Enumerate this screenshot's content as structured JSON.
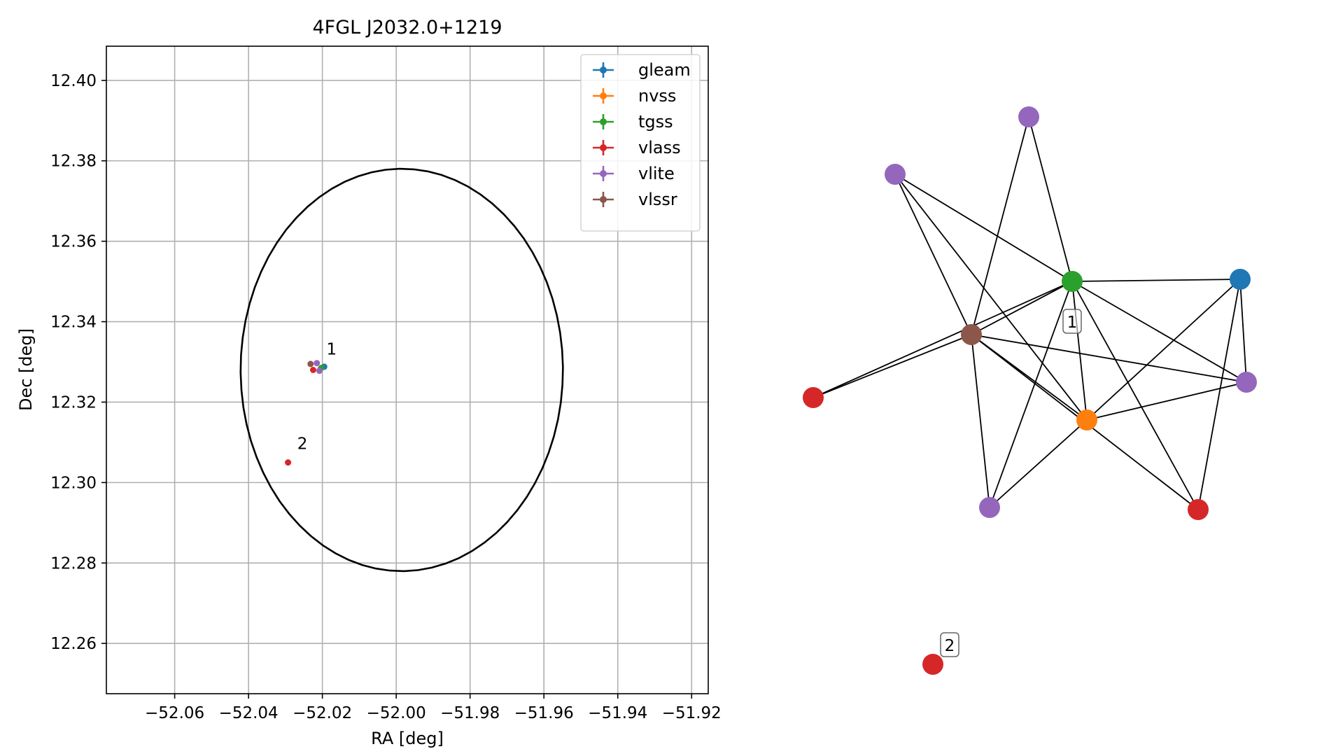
{
  "chart_data": [
    {
      "type": "scatter",
      "title": "4FGL J2032.0+1219",
      "xlabel": "RA [deg]",
      "ylabel": "Dec [deg]",
      "xlim": [
        -52.0785,
        -51.9155
      ],
      "ylim": [
        12.2475,
        12.4085
      ],
      "xticks": [
        -52.06,
        -52.04,
        -52.02,
        -52.0,
        -51.98,
        -51.96,
        -51.94,
        -51.92
      ],
      "xtick_labels": [
        "−52.06",
        "−52.04",
        "−52.02",
        "−52.00",
        "−51.98",
        "−51.96",
        "−51.94",
        "−51.92"
      ],
      "yticks": [
        12.26,
        12.28,
        12.3,
        12.32,
        12.34,
        12.36,
        12.38,
        12.4
      ],
      "ytick_labels": [
        "12.26",
        "12.28",
        "12.30",
        "12.32",
        "12.34",
        "12.36",
        "12.38",
        "12.40"
      ],
      "grid": true,
      "legend_position": "top-right",
      "ellipse": {
        "center": [
          -51.9985,
          12.328
        ],
        "ra_halfwidth": 0.0445,
        "dec_halfheight": 0.051,
        "tilt_deg": -12,
        "color": "#000000"
      },
      "series": [
        {
          "name": "gleam",
          "color": "#1f77b4",
          "points": [
            {
              "x": -52.0195,
              "y": 12.3288
            }
          ]
        },
        {
          "name": "nvss",
          "color": "#ff7f0e",
          "points": [
            {
              "x": -52.0205,
              "y": 12.3283
            }
          ]
        },
        {
          "name": "tgss",
          "color": "#2ca02c",
          "points": [
            {
              "x": -52.0203,
              "y": 12.3285
            }
          ]
        },
        {
          "name": "vlass",
          "color": "#d62728",
          "points": [
            {
              "x": -52.0225,
              "y": 12.328
            },
            {
              "x": -52.0293,
              "y": 12.305
            }
          ]
        },
        {
          "name": "vlite",
          "color": "#9467bd",
          "points": [
            {
              "x": -52.0215,
              "y": 12.3297
            },
            {
              "x": -52.0208,
              "y": 12.3278
            }
          ]
        },
        {
          "name": "vlssr",
          "color": "#8c564b",
          "points": [
            {
              "x": -52.0232,
              "y": 12.3295
            }
          ]
        }
      ],
      "annotations": [
        {
          "text": "1",
          "x": -52.0189,
          "y": 12.3318
        },
        {
          "text": "2",
          "x": -52.0268,
          "y": 12.3083
        }
      ]
    },
    {
      "type": "network",
      "nodes": [
        {
          "id": "purple_top",
          "color": "#9467bd"
        },
        {
          "id": "purple_left",
          "color": "#9467bd"
        },
        {
          "id": "green",
          "color": "#2ca02c"
        },
        {
          "id": "blue",
          "color": "#1f77b4"
        },
        {
          "id": "brown",
          "color": "#8c564b"
        },
        {
          "id": "red_left",
          "color": "#d62728"
        },
        {
          "id": "purple_right",
          "color": "#9467bd"
        },
        {
          "id": "orange",
          "color": "#ff7f0e"
        },
        {
          "id": "purple_bottom",
          "color": "#9467bd"
        },
        {
          "id": "red_right",
          "color": "#d62728"
        },
        {
          "id": "red_isolated",
          "color": "#d62728"
        }
      ],
      "edges": [
        [
          "purple_top",
          "green"
        ],
        [
          "purple_top",
          "brown"
        ],
        [
          "purple_left",
          "green"
        ],
        [
          "purple_left",
          "brown"
        ],
        [
          "purple_left",
          "orange"
        ],
        [
          "green",
          "blue"
        ],
        [
          "green",
          "brown"
        ],
        [
          "green",
          "red_left"
        ],
        [
          "green",
          "orange"
        ],
        [
          "green",
          "purple_right"
        ],
        [
          "green",
          "red_right"
        ],
        [
          "green",
          "purple_bottom"
        ],
        [
          "blue",
          "orange"
        ],
        [
          "blue",
          "purple_right"
        ],
        [
          "blue",
          "red_right"
        ],
        [
          "brown",
          "red_left"
        ],
        [
          "brown",
          "orange"
        ],
        [
          "brown",
          "purple_right"
        ],
        [
          "brown",
          "purple_bottom"
        ],
        [
          "brown",
          "red_right"
        ],
        [
          "orange",
          "purple_right"
        ],
        [
          "orange",
          "purple_bottom"
        ]
      ],
      "labels": [
        {
          "text": "1",
          "near": "green"
        },
        {
          "text": "2",
          "near": "red_isolated"
        }
      ]
    }
  ]
}
